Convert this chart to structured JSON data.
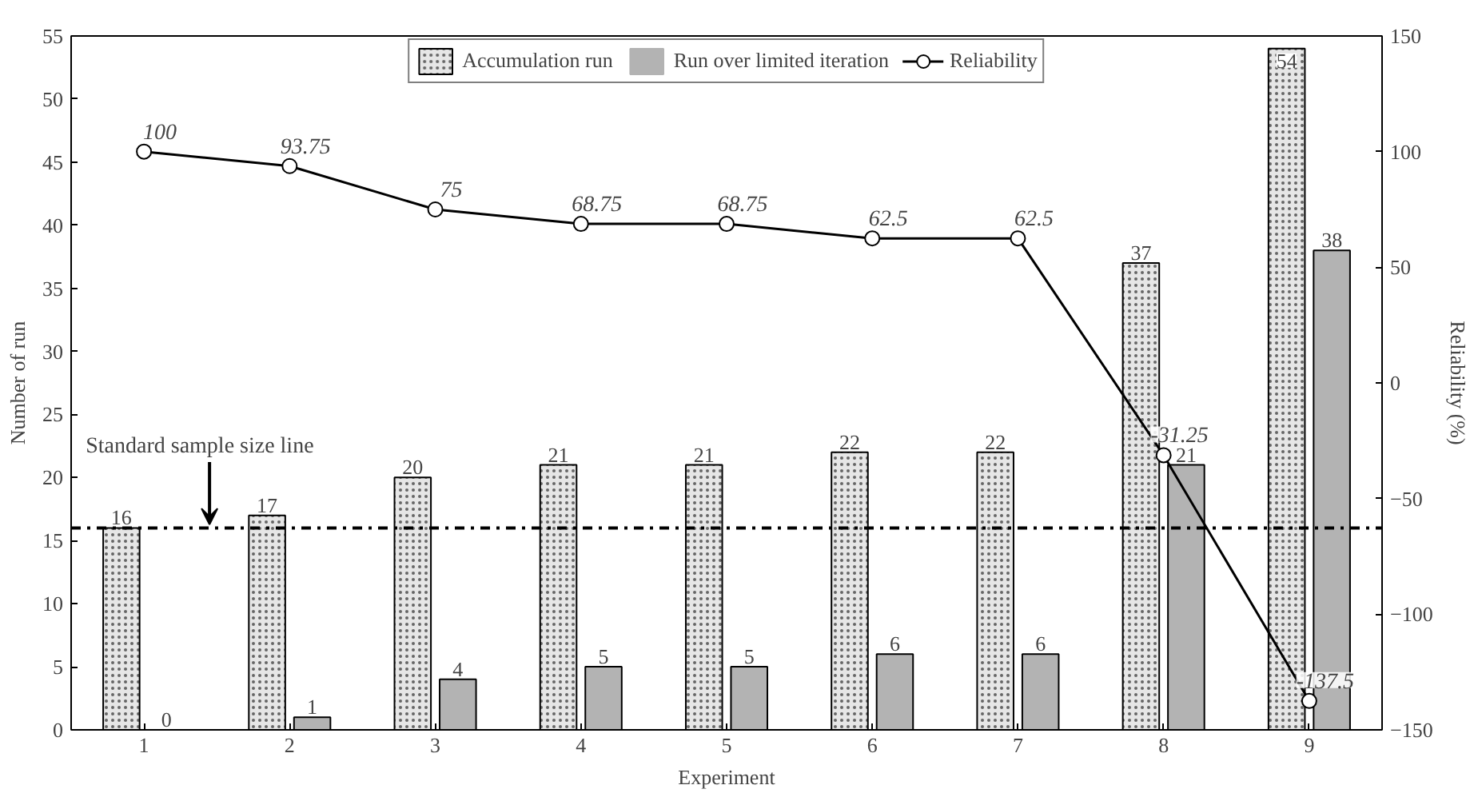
{
  "chart_data": {
    "type": "bar",
    "xlabel": "Experiment",
    "ylabel": "Number of run",
    "y2label": "Reliability (%)",
    "categories": [
      "1",
      "2",
      "3",
      "4",
      "5",
      "6",
      "7",
      "8",
      "9"
    ],
    "series": [
      {
        "name": "Accumulation run",
        "color": "#e6e6e6",
        "values": [
          16,
          17,
          20,
          21,
          21,
          22,
          22,
          37,
          54
        ]
      },
      {
        "name": "Run over limited iteration",
        "color": "#b3b3b3",
        "values": [
          0,
          1,
          4,
          5,
          5,
          6,
          6,
          21,
          38
        ]
      },
      {
        "name": "Reliability",
        "type": "line",
        "axis": "y2",
        "color": "#000000",
        "marker": "circle",
        "values": [
          100,
          93.75,
          75,
          68.75,
          68.75,
          62.5,
          62.5,
          -31.25,
          -137.5
        ]
      }
    ],
    "ylim": [
      0,
      55
    ],
    "yticks": [
      0,
      5,
      10,
      15,
      20,
      25,
      30,
      35,
      40,
      45,
      50,
      55
    ],
    "y2lim": [
      -150,
      150
    ],
    "y2ticks": [
      -150,
      -100,
      -50,
      0,
      50,
      100,
      150
    ],
    "ref_lines": [
      {
        "axis": "y",
        "value": 16,
        "label": "Standard sample size line",
        "line_style": "dashdot",
        "color": "#000000"
      }
    ],
    "data_labels": true,
    "grid": false,
    "legend": "top"
  }
}
